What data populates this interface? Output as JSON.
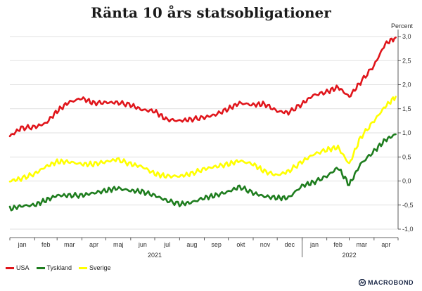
{
  "chart_data": {
    "type": "line",
    "title": "Ränta 10 års statsobligationer",
    "ylabel": "Percent",
    "ylim": [
      -1.0,
      3.0
    ],
    "yticks": [
      "-1,0",
      "-0,5",
      "0,0",
      "0,5",
      "1,0",
      "1,5",
      "2,0",
      "2,5",
      "3,0"
    ],
    "ytick_values": [
      -1.0,
      -0.5,
      0.0,
      0.5,
      1.0,
      1.5,
      2.0,
      2.5,
      3.0
    ],
    "grid": "horizontal",
    "legend_position": "bottom-left",
    "month_labels": [
      "jan",
      "feb",
      "mar",
      "apr",
      "maj",
      "jun",
      "jul",
      "aug",
      "sep",
      "okt",
      "nov",
      "dec",
      "jan",
      "feb",
      "mar",
      "apr"
    ],
    "year_labels": [
      {
        "label": "2021",
        "month_index": 6
      },
      {
        "label": "2022",
        "month_index": 14
      }
    ],
    "x": [
      "2021-01-01",
      "2021-01-15",
      "2021-02-01",
      "2021-02-15",
      "2021-03-01",
      "2021-03-15",
      "2021-04-01",
      "2021-04-15",
      "2021-05-01",
      "2021-05-15",
      "2021-06-01",
      "2021-06-15",
      "2021-07-01",
      "2021-07-15",
      "2021-08-01",
      "2021-08-15",
      "2021-09-01",
      "2021-09-15",
      "2021-10-01",
      "2021-10-15",
      "2021-11-01",
      "2021-11-15",
      "2021-12-01",
      "2021-12-15",
      "2022-01-01",
      "2022-01-15",
      "2022-02-01",
      "2022-02-15",
      "2022-03-01",
      "2022-03-15",
      "2022-04-01",
      "2022-04-15",
      "2022-04-28"
    ],
    "series": [
      {
        "name": "USA",
        "color": "#e0151b",
        "values": [
          0.93,
          1.1,
          1.12,
          1.2,
          1.45,
          1.63,
          1.72,
          1.62,
          1.63,
          1.63,
          1.58,
          1.48,
          1.45,
          1.28,
          1.25,
          1.28,
          1.32,
          1.38,
          1.5,
          1.62,
          1.58,
          1.6,
          1.45,
          1.42,
          1.6,
          1.78,
          1.85,
          1.95,
          1.75,
          2.05,
          2.4,
          2.85,
          2.98
        ]
      },
      {
        "name": "Tyskland",
        "color": "#1e7d1e",
        "values": [
          -0.58,
          -0.52,
          -0.5,
          -0.4,
          -0.3,
          -0.3,
          -0.3,
          -0.25,
          -0.2,
          -0.15,
          -0.2,
          -0.22,
          -0.3,
          -0.4,
          -0.48,
          -0.45,
          -0.35,
          -0.3,
          -0.22,
          -0.12,
          -0.25,
          -0.32,
          -0.35,
          -0.35,
          -0.1,
          -0.03,
          0.1,
          0.28,
          -0.08,
          0.35,
          0.62,
          0.85,
          0.97
        ]
      },
      {
        "name": "Sverige",
        "color": "#ffff00",
        "values": [
          0.0,
          0.05,
          0.15,
          0.3,
          0.4,
          0.4,
          0.35,
          0.35,
          0.4,
          0.45,
          0.35,
          0.3,
          0.15,
          0.1,
          0.1,
          0.15,
          0.25,
          0.3,
          0.35,
          0.42,
          0.35,
          0.2,
          0.12,
          0.2,
          0.4,
          0.55,
          0.65,
          0.7,
          0.35,
          0.9,
          1.25,
          1.55,
          1.75
        ]
      }
    ]
  },
  "brand": {
    "name": "MACROBOND",
    "color": "#1d2a48"
  }
}
